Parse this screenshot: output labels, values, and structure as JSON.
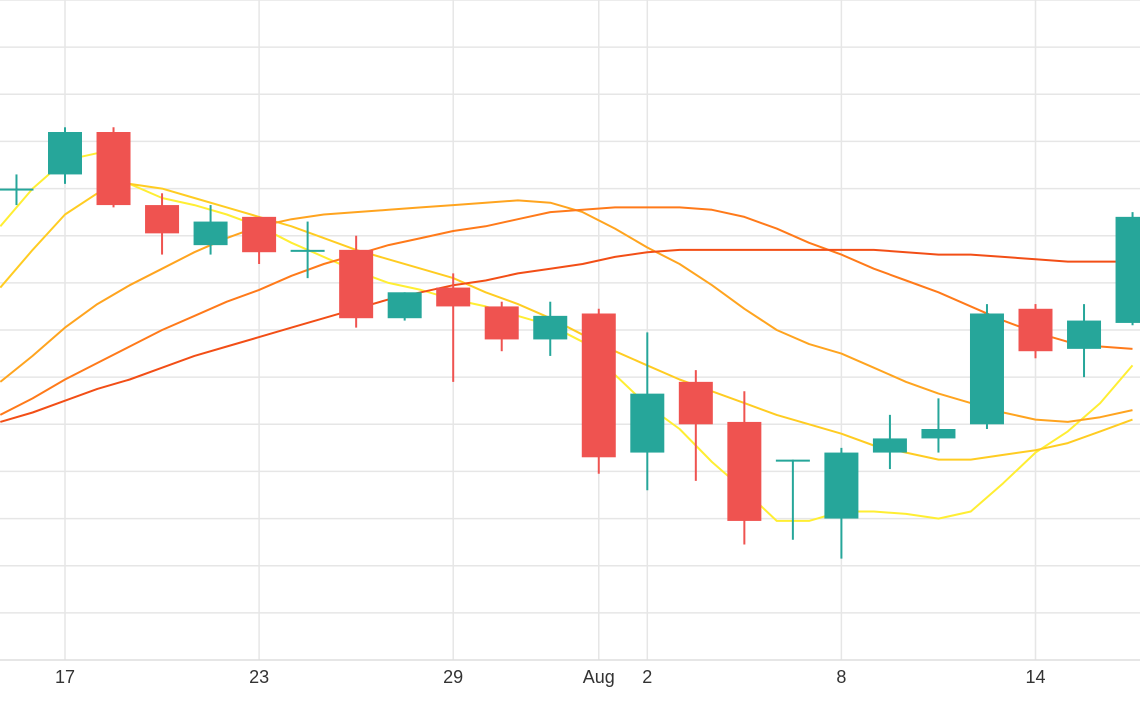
{
  "chart_data": {
    "type": "candlestick",
    "title": "",
    "xlabel": "",
    "ylabel": "",
    "ylim": [
      0,
      14
    ],
    "grid": true,
    "x_tick_labels": [
      {
        "x": 0,
        "label": "17"
      },
      {
        "x": 6,
        "label": "23"
      },
      {
        "x": 12,
        "label": "29"
      },
      {
        "x": 16.5,
        "label": "Aug"
      },
      {
        "x": 18,
        "label": "2"
      },
      {
        "x": 24,
        "label": "8"
      },
      {
        "x": 30,
        "label": "14"
      }
    ],
    "colors": {
      "up": "#26a69a",
      "down": "#ef5350",
      "grid": "#e6e6e6",
      "ma_lines": [
        "#ffee33",
        "#ffcc22",
        "#ffa41f",
        "#ff7a1a",
        "#f24e16"
      ]
    },
    "candles": [
      {
        "x": -1.5,
        "open": 10.0,
        "high": 10.3,
        "low": 9.65,
        "close": 10.0
      },
      {
        "x": 0,
        "open": 10.3,
        "high": 11.3,
        "low": 10.1,
        "close": 11.2
      },
      {
        "x": 1.5,
        "open": 11.2,
        "high": 11.3,
        "low": 9.6,
        "close": 9.65
      },
      {
        "x": 3,
        "open": 9.65,
        "high": 9.9,
        "low": 8.6,
        "close": 9.05
      },
      {
        "x": 4.5,
        "open": 8.8,
        "high": 9.65,
        "low": 8.6,
        "close": 9.3
      },
      {
        "x": 6,
        "open": 9.4,
        "high": 9.4,
        "low": 8.4,
        "close": 8.65
      },
      {
        "x": 7.5,
        "open": 8.7,
        "high": 9.3,
        "low": 8.1,
        "close": 8.7
      },
      {
        "x": 9,
        "open": 8.7,
        "high": 9.0,
        "low": 7.05,
        "close": 7.25
      },
      {
        "x": 10.5,
        "open": 7.25,
        "high": 7.8,
        "low": 7.2,
        "close": 7.8
      },
      {
        "x": 12,
        "open": 7.9,
        "high": 8.2,
        "low": 5.9,
        "close": 7.5
      },
      {
        "x": 13.5,
        "open": 7.5,
        "high": 7.6,
        "low": 6.55,
        "close": 6.8
      },
      {
        "x": 15,
        "open": 6.8,
        "high": 7.6,
        "low": 6.45,
        "close": 7.3
      },
      {
        "x": 16.5,
        "open": 7.35,
        "high": 7.45,
        "low": 3.95,
        "close": 4.3
      },
      {
        "x": 18,
        "open": 4.4,
        "high": 6.95,
        "low": 3.6,
        "close": 5.65
      },
      {
        "x": 19.5,
        "open": 5.9,
        "high": 6.15,
        "low": 3.8,
        "close": 5.0
      },
      {
        "x": 21,
        "open": 5.05,
        "high": 5.7,
        "low": 2.45,
        "close": 2.95
      },
      {
        "x": 22.5,
        "open": 4.25,
        "high": 4.25,
        "low": 2.55,
        "close": 4.25
      },
      {
        "x": 24,
        "open": 3.0,
        "high": 4.5,
        "low": 2.15,
        "close": 4.4
      },
      {
        "x": 25.5,
        "open": 4.4,
        "high": 5.2,
        "low": 4.05,
        "close": 4.7
      },
      {
        "x": 27,
        "open": 4.7,
        "high": 5.55,
        "low": 4.4,
        "close": 4.9
      },
      {
        "x": 28.5,
        "open": 5.0,
        "high": 7.55,
        "low": 4.9,
        "close": 7.35
      },
      {
        "x": 30,
        "open": 7.45,
        "high": 7.55,
        "low": 6.4,
        "close": 6.55
      },
      {
        "x": 31.5,
        "open": 6.6,
        "high": 7.55,
        "low": 6.0,
        "close": 7.2
      },
      {
        "x": 33,
        "open": 7.15,
        "high": 9.5,
        "low": 7.1,
        "close": 9.4
      }
    ],
    "moving_averages": [
      {
        "color": "#ffee33",
        "points": [
          [
            -2,
            9.2
          ],
          [
            -1,
            10.0
          ],
          [
            0,
            10.6
          ],
          [
            1,
            10.75
          ],
          [
            2,
            10.1
          ],
          [
            3,
            9.8
          ],
          [
            4,
            9.65
          ],
          [
            5,
            9.45
          ],
          [
            6,
            9.2
          ],
          [
            7,
            8.85
          ],
          [
            8,
            8.55
          ],
          [
            9,
            8.25
          ],
          [
            10,
            8.0
          ],
          [
            11,
            7.85
          ],
          [
            12,
            7.65
          ],
          [
            13,
            7.5
          ],
          [
            14,
            7.3
          ],
          [
            15,
            7.1
          ],
          [
            16,
            6.75
          ],
          [
            17,
            6.05
          ],
          [
            18,
            5.4
          ],
          [
            19,
            4.9
          ],
          [
            20,
            4.2
          ],
          [
            21,
            3.6
          ],
          [
            22,
            2.95
          ],
          [
            23,
            2.95
          ],
          [
            24,
            3.15
          ],
          [
            25,
            3.15
          ],
          [
            26,
            3.1
          ],
          [
            27,
            3.0
          ],
          [
            28,
            3.15
          ],
          [
            29,
            3.75
          ],
          [
            30,
            4.4
          ],
          [
            31,
            4.85
          ],
          [
            32,
            5.45
          ],
          [
            33,
            6.25
          ]
        ]
      },
      {
        "color": "#ffcc22",
        "points": [
          [
            -2,
            7.9
          ],
          [
            -1,
            8.7
          ],
          [
            0,
            9.45
          ],
          [
            1,
            9.9
          ],
          [
            2,
            10.1
          ],
          [
            3,
            10.0
          ],
          [
            4,
            9.8
          ],
          [
            5,
            9.6
          ],
          [
            6,
            9.4
          ],
          [
            7,
            9.2
          ],
          [
            8,
            8.95
          ],
          [
            9,
            8.7
          ],
          [
            10,
            8.5
          ],
          [
            11,
            8.3
          ],
          [
            12,
            8.1
          ],
          [
            13,
            7.8
          ],
          [
            14,
            7.55
          ],
          [
            15,
            7.25
          ],
          [
            16,
            6.9
          ],
          [
            17,
            6.55
          ],
          [
            18,
            6.25
          ],
          [
            19,
            5.95
          ],
          [
            20,
            5.7
          ],
          [
            21,
            5.45
          ],
          [
            22,
            5.2
          ],
          [
            23,
            5.0
          ],
          [
            24,
            4.8
          ],
          [
            25,
            4.55
          ],
          [
            26,
            4.4
          ],
          [
            27,
            4.25
          ],
          [
            28,
            4.25
          ],
          [
            29,
            4.35
          ],
          [
            30,
            4.45
          ],
          [
            31,
            4.6
          ],
          [
            32,
            4.85
          ],
          [
            33,
            5.1
          ]
        ]
      },
      {
        "color": "#ffa41f",
        "points": [
          [
            -2,
            5.9
          ],
          [
            -1,
            6.45
          ],
          [
            0,
            7.05
          ],
          [
            1,
            7.55
          ],
          [
            2,
            7.95
          ],
          [
            3,
            8.3
          ],
          [
            4,
            8.65
          ],
          [
            5,
            8.95
          ],
          [
            6,
            9.2
          ],
          [
            7,
            9.35
          ],
          [
            8,
            9.45
          ],
          [
            9,
            9.5
          ],
          [
            10,
            9.55
          ],
          [
            11,
            9.6
          ],
          [
            12,
            9.65
          ],
          [
            13,
            9.7
          ],
          [
            14,
            9.75
          ],
          [
            15,
            9.7
          ],
          [
            16,
            9.5
          ],
          [
            17,
            9.15
          ],
          [
            18,
            8.75
          ],
          [
            19,
            8.4
          ],
          [
            20,
            7.95
          ],
          [
            21,
            7.45
          ],
          [
            22,
            7.0
          ],
          [
            23,
            6.7
          ],
          [
            24,
            6.5
          ],
          [
            25,
            6.2
          ],
          [
            26,
            5.9
          ],
          [
            27,
            5.65
          ],
          [
            28,
            5.45
          ],
          [
            29,
            5.25
          ],
          [
            30,
            5.1
          ],
          [
            31,
            5.05
          ],
          [
            32,
            5.15
          ],
          [
            33,
            5.3
          ]
        ]
      },
      {
        "color": "#ff7a1a",
        "points": [
          [
            -2,
            5.2
          ],
          [
            -1,
            5.55
          ],
          [
            0,
            5.95
          ],
          [
            1,
            6.3
          ],
          [
            2,
            6.65
          ],
          [
            3,
            7.0
          ],
          [
            4,
            7.3
          ],
          [
            5,
            7.6
          ],
          [
            6,
            7.85
          ],
          [
            7,
            8.15
          ],
          [
            8,
            8.4
          ],
          [
            9,
            8.6
          ],
          [
            10,
            8.8
          ],
          [
            11,
            8.95
          ],
          [
            12,
            9.1
          ],
          [
            13,
            9.2
          ],
          [
            14,
            9.35
          ],
          [
            15,
            9.5
          ],
          [
            16,
            9.55
          ],
          [
            17,
            9.6
          ],
          [
            18,
            9.6
          ],
          [
            19,
            9.6
          ],
          [
            20,
            9.55
          ],
          [
            21,
            9.4
          ],
          [
            22,
            9.15
          ],
          [
            23,
            8.85
          ],
          [
            24,
            8.6
          ],
          [
            25,
            8.3
          ],
          [
            26,
            8.05
          ],
          [
            27,
            7.8
          ],
          [
            28,
            7.5
          ],
          [
            29,
            7.2
          ],
          [
            30,
            6.95
          ],
          [
            31,
            6.75
          ],
          [
            32,
            6.65
          ],
          [
            33,
            6.6
          ]
        ]
      },
      {
        "color": "#f24e16",
        "points": [
          [
            -2,
            5.05
          ],
          [
            -1,
            5.25
          ],
          [
            0,
            5.5
          ],
          [
            1,
            5.75
          ],
          [
            2,
            5.95
          ],
          [
            3,
            6.2
          ],
          [
            4,
            6.45
          ],
          [
            5,
            6.65
          ],
          [
            6,
            6.85
          ],
          [
            7,
            7.05
          ],
          [
            8,
            7.25
          ],
          [
            9,
            7.45
          ],
          [
            10,
            7.65
          ],
          [
            11,
            7.8
          ],
          [
            12,
            7.95
          ],
          [
            13,
            8.05
          ],
          [
            14,
            8.2
          ],
          [
            15,
            8.3
          ],
          [
            16,
            8.4
          ],
          [
            17,
            8.55
          ],
          [
            18,
            8.65
          ],
          [
            19,
            8.7
          ],
          [
            20,
            8.7
          ],
          [
            21,
            8.7
          ],
          [
            22,
            8.7
          ],
          [
            23,
            8.7
          ],
          [
            24,
            8.7
          ],
          [
            25,
            8.7
          ],
          [
            26,
            8.65
          ],
          [
            27,
            8.6
          ],
          [
            28,
            8.6
          ],
          [
            29,
            8.55
          ],
          [
            30,
            8.5
          ],
          [
            31,
            8.45
          ],
          [
            32,
            8.45
          ],
          [
            33,
            8.45
          ]
        ]
      }
    ]
  }
}
